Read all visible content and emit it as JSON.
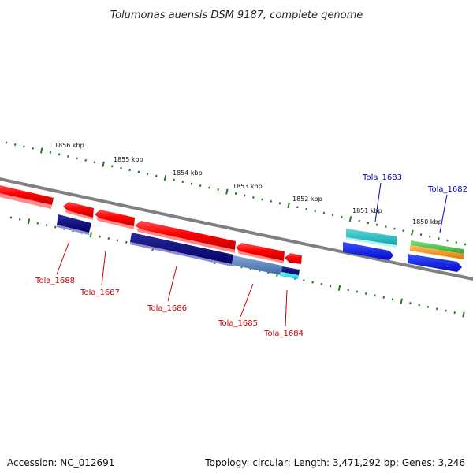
{
  "title": "Tolumonas auensis DSM 9187, complete genome",
  "footer": {
    "accession": "Accession: NC_012691",
    "topology": "Topology: circular; Length: 3,471,292 bp; Genes: 3,246"
  },
  "kbp_labels": [
    "1856 kbp",
    "1855 kbp",
    "1854 kbp",
    "1853 kbp",
    "1852 kbp",
    "1851 kbp",
    "1850 kbp"
  ],
  "genes": [
    {
      "id": "Tola_1688",
      "label": "Tola_1688",
      "strand": "reverse"
    },
    {
      "id": "Tola_1687",
      "label": "Tola_1687",
      "strand": "reverse"
    },
    {
      "id": "Tola_1686",
      "label": "Tola_1686",
      "strand": "reverse"
    },
    {
      "id": "Tola_1685",
      "label": "Tola_1685",
      "strand": "reverse"
    },
    {
      "id": "Tola_1684",
      "label": "Tola_1684",
      "strand": "reverse"
    },
    {
      "id": "Tola_1683",
      "label": "Tola_1683",
      "strand": "forward"
    },
    {
      "id": "Tola_1682",
      "label": "Tola_1682",
      "strand": "forward"
    }
  ],
  "colors": {
    "reverse_gene": "#ff1a1a",
    "forward_gene": "#0a14e6",
    "reverse_label": "#cc0000",
    "forward_label": "#0000bb",
    "backbone": "#808080",
    "ticks": "#1f7a1f"
  }
}
